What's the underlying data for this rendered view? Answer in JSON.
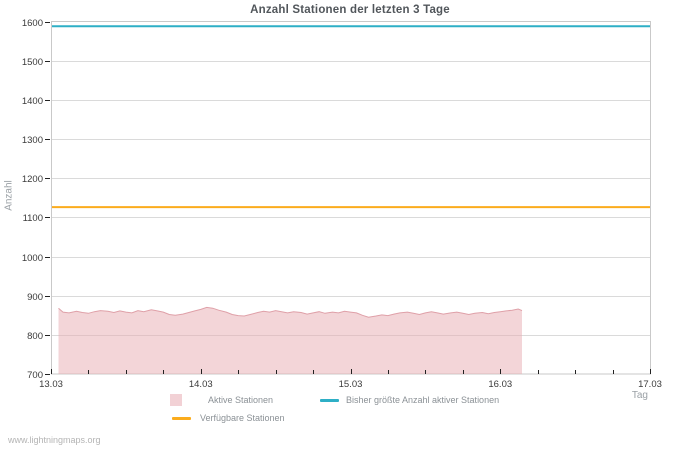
{
  "watermark": {
    "text": "www.lightningmaps.org"
  },
  "chart_data": {
    "type": "area",
    "title": "Anzahl Stationen der letzten 3 Tage",
    "xlabel": "Tag",
    "ylabel": "Anzahl",
    "ylim": [
      700,
      1600
    ],
    "y_tick_step": 100,
    "y_tick_labels": [
      "700",
      "800",
      "900",
      "1000",
      "1100",
      "1200",
      "1300",
      "1400",
      "1500",
      "1600"
    ],
    "xlim_days": [
      0,
      4
    ],
    "x_tick_labels": [
      "13.03",
      "14.03",
      "15.03",
      "16.03",
      "17.03"
    ],
    "x_minor_ticks_per_day": 4,
    "grid": "horizontal-only",
    "legend_position": "bottom",
    "colors": {
      "grid": "#dadada",
      "border": "#c9c9c9",
      "tick": "#222222",
      "tick_label": "#3a3a3a"
    },
    "series": [
      {
        "name": "Aktive Stationen",
        "type": "area",
        "fill_color": "#e7acb2",
        "fill_opacity": 0.5,
        "edge_color": "#dfa0a8",
        "x_days": [
          0.05,
          0.08,
          0.12,
          0.17,
          0.21,
          0.25,
          0.29,
          0.33,
          0.38,
          0.42,
          0.46,
          0.5,
          0.54,
          0.58,
          0.62,
          0.67,
          0.71,
          0.75,
          0.79,
          0.83,
          0.88,
          0.92,
          0.96,
          1.0,
          1.04,
          1.08,
          1.12,
          1.17,
          1.21,
          1.25,
          1.29,
          1.33,
          1.38,
          1.42,
          1.46,
          1.5,
          1.54,
          1.58,
          1.62,
          1.67,
          1.71,
          1.75,
          1.79,
          1.83,
          1.88,
          1.92,
          1.96,
          2.0,
          2.04,
          2.08,
          2.12,
          2.17,
          2.21,
          2.25,
          2.29,
          2.33,
          2.38,
          2.42,
          2.46,
          2.5,
          2.54,
          2.58,
          2.62,
          2.67,
          2.71,
          2.75,
          2.79,
          2.83,
          2.88,
          2.92,
          2.96,
          3.0,
          3.04,
          3.08,
          3.12,
          3.145
        ],
        "values": [
          868,
          858,
          856,
          860,
          857,
          855,
          859,
          862,
          860,
          857,
          861,
          858,
          856,
          862,
          859,
          864,
          861,
          858,
          852,
          850,
          853,
          857,
          861,
          865,
          870,
          868,
          863,
          858,
          852,
          849,
          848,
          852,
          857,
          860,
          858,
          862,
          859,
          856,
          859,
          857,
          853,
          856,
          859,
          855,
          858,
          856,
          860,
          858,
          856,
          850,
          845,
          848,
          851,
          849,
          853,
          856,
          858,
          855,
          852,
          856,
          859,
          856,
          853,
          856,
          858,
          855,
          852,
          855,
          857,
          854,
          857,
          859,
          861,
          863,
          866,
          862
        ]
      },
      {
        "name": "Bisher größte Anzahl aktiver Stationen",
        "type": "line",
        "color": "#2eafc6",
        "constant_value": 1588
      },
      {
        "name": "Verfügbare Stationen",
        "type": "line",
        "color": "#fbac1d",
        "constant_value": 1126
      }
    ]
  }
}
